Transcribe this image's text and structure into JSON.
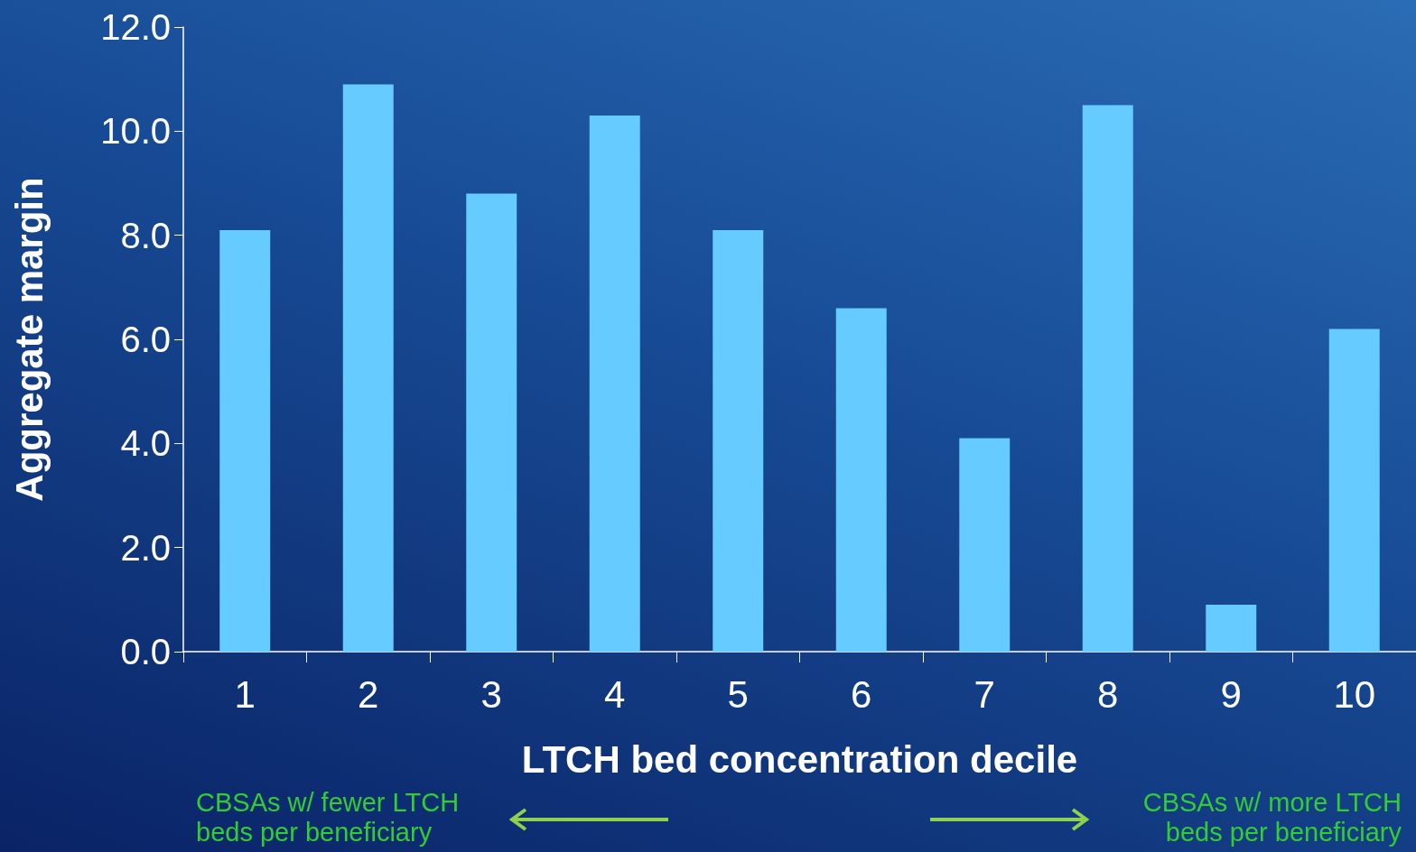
{
  "chart_data": {
    "type": "bar",
    "xlabel": "LTCH bed concentration decile",
    "ylabel": "Aggregate margin",
    "categories": [
      "1",
      "2",
      "3",
      "4",
      "5",
      "6",
      "7",
      "8",
      "9",
      "10"
    ],
    "values": [
      8.1,
      10.9,
      8.8,
      10.3,
      8.1,
      6.6,
      4.1,
      10.5,
      0.9,
      6.2
    ],
    "color": "#66ccff",
    "ylim": [
      0,
      12
    ],
    "yticks": [
      {
        "value": 0,
        "label": "0.0"
      },
      {
        "value": 2,
        "label": "2.0"
      },
      {
        "value": 4,
        "label": "4.0"
      },
      {
        "value": 6,
        "label": "6.0"
      },
      {
        "value": 8,
        "label": "8.0"
      },
      {
        "value": 10,
        "label": "10.0"
      },
      {
        "value": 12,
        "label": "12.0"
      }
    ],
    "grid": false,
    "annotations": [
      "CBSAs w/ fewer LTCH\nbeds per beneficiary",
      "CBSAs w/ more LTCH\nbeds per beneficiary"
    ]
  }
}
